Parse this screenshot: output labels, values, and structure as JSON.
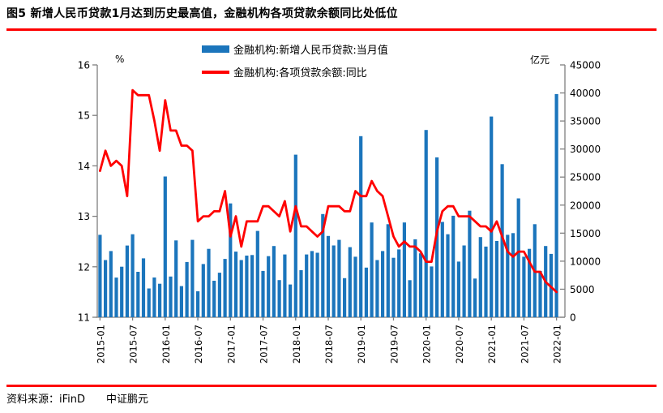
{
  "header": {
    "title": "图5 新增人民币贷款1月达到历史最高值，金融机构各项贷款余额同比处低位"
  },
  "footer": {
    "source_label": "资料来源：iFinD",
    "source_org": "中证鹏元"
  },
  "colors": {
    "rule_red": "#fe0000",
    "bar_blue": "#1b75bc",
    "line_red": "#ff0000",
    "axis_gray": "#808080"
  },
  "chart_data": {
    "type": "combo-bar-line",
    "grid": false,
    "legend_position": "top-center",
    "categories": [
      "2015-01",
      "2015-02",
      "2015-03",
      "2015-04",
      "2015-05",
      "2015-06",
      "2015-07",
      "2015-08",
      "2015-09",
      "2015-10",
      "2015-11",
      "2015-12",
      "2016-01",
      "2016-02",
      "2016-03",
      "2016-04",
      "2016-05",
      "2016-06",
      "2016-07",
      "2016-08",
      "2016-09",
      "2016-10",
      "2016-11",
      "2016-12",
      "2017-01",
      "2017-02",
      "2017-03",
      "2017-04",
      "2017-05",
      "2017-06",
      "2017-07",
      "2017-08",
      "2017-09",
      "2017-10",
      "2017-11",
      "2017-12",
      "2018-01",
      "2018-02",
      "2018-03",
      "2018-04",
      "2018-05",
      "2018-06",
      "2018-07",
      "2018-08",
      "2018-09",
      "2018-10",
      "2018-11",
      "2018-12",
      "2019-01",
      "2019-02",
      "2019-03",
      "2019-04",
      "2019-05",
      "2019-06",
      "2019-07",
      "2019-08",
      "2019-09",
      "2019-10",
      "2019-11",
      "2019-12",
      "2020-01",
      "2020-02",
      "2020-03",
      "2020-04",
      "2020-05",
      "2020-06",
      "2020-07",
      "2020-08",
      "2020-09",
      "2020-10",
      "2020-11",
      "2020-12",
      "2021-01",
      "2021-02",
      "2021-03",
      "2021-04",
      "2021-05",
      "2021-06",
      "2021-07",
      "2021-08",
      "2021-09",
      "2021-10",
      "2021-11",
      "2021-12",
      "2022-01"
    ],
    "series": [
      {
        "name": "金融机构:新增人民币贷款:当月值",
        "chart_type": "bar",
        "axis": "right",
        "unit": "亿元",
        "color": "#1b75bc",
        "values": [
          14700,
          10200,
          11800,
          7079,
          9008,
          12791,
          14800,
          8096,
          10500,
          5136,
          7089,
          5978,
          25100,
          7266,
          13700,
          5556,
          9855,
          13800,
          4636,
          9487,
          12200,
          6513,
          7946,
          10400,
          20300,
          11700,
          10200,
          11000,
          11100,
          15400,
          8255,
          10900,
          12700,
          6632,
          11200,
          5844,
          29000,
          8393,
          11200,
          11800,
          11500,
          18400,
          14500,
          12800,
          13800,
          6970,
          12500,
          10800,
          32300,
          8858,
          16900,
          10200,
          11800,
          16600,
          10600,
          12100,
          16900,
          6613,
          13900,
          11400,
          33400,
          9057,
          28500,
          17000,
          14800,
          18100,
          9927,
          12800,
          19000,
          6898,
          14300,
          12600,
          35800,
          13600,
          27300,
          14700,
          15000,
          21200,
          10800,
          12200,
          16600,
          8262,
          12700,
          11300,
          39800
        ]
      },
      {
        "name": "金融机构:各项贷款余额:同比",
        "chart_type": "line",
        "axis": "left",
        "unit": "%",
        "color": "#ff0000",
        "values": [
          13.9,
          14.3,
          14.0,
          14.1,
          14.0,
          13.4,
          15.5,
          15.4,
          15.4,
          15.4,
          14.9,
          14.3,
          15.3,
          14.7,
          14.7,
          14.4,
          14.4,
          14.3,
          12.9,
          13.0,
          13.0,
          13.1,
          13.1,
          13.5,
          12.6,
          13.0,
          12.4,
          12.9,
          12.9,
          12.9,
          13.2,
          13.2,
          13.1,
          13.0,
          13.3,
          12.7,
          13.2,
          12.8,
          12.8,
          12.7,
          12.6,
          12.7,
          13.2,
          13.2,
          13.2,
          13.1,
          13.1,
          13.5,
          13.4,
          13.4,
          13.7,
          13.5,
          13.4,
          13.0,
          12.6,
          12.4,
          12.5,
          12.4,
          12.4,
          12.3,
          12.1,
          12.1,
          12.7,
          13.1,
          13.2,
          13.2,
          13.0,
          13.0,
          13.0,
          12.9,
          12.8,
          12.8,
          12.7,
          12.9,
          12.6,
          12.3,
          12.2,
          12.3,
          12.3,
          12.1,
          11.9,
          11.9,
          11.7,
          11.6,
          11.5
        ]
      }
    ],
    "left_axis": {
      "unit_label": "%",
      "min": 11,
      "max": 16,
      "ticks": [
        11,
        12,
        13,
        14,
        15,
        16
      ]
    },
    "right_axis": {
      "unit_label": "亿元",
      "min": 0,
      "max": 45000,
      "ticks": [
        0,
        5000,
        10000,
        15000,
        20000,
        25000,
        30000,
        35000,
        40000,
        45000
      ]
    },
    "x_axis": {
      "tick_label_every": 6,
      "tick_labels": [
        "2015-01",
        "2015-07",
        "2016-01",
        "2016-07",
        "2017-01",
        "2017-07",
        "2018-01",
        "2018-07",
        "2019-01",
        "2019-07",
        "2020-01",
        "2020-07",
        "2021-01",
        "2021-07",
        "2022-01"
      ]
    }
  }
}
